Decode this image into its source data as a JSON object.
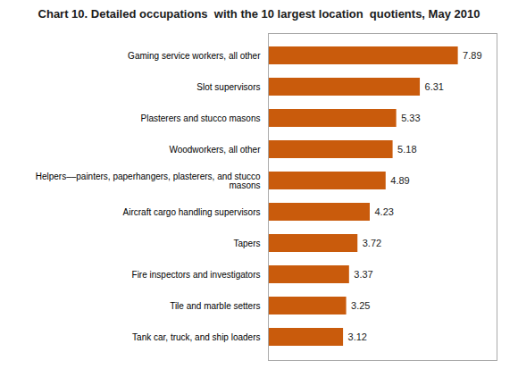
{
  "chart_data": {
    "type": "bar",
    "orientation": "horizontal",
    "title": "Chart 10. Detailed occupations  with the 10 largest location  quotients, May 2010",
    "categories": [
      "Tank car, truck, and ship loaders",
      "Tile and marble setters",
      "Fire inspectors and investigators",
      "Tapers",
      "Aircraft cargo handling supervisors",
      "Helpers––painters, paperhangers, plasterers, and stucco\nmasons",
      "Woodworkers, all other",
      "Plasterers and stucco masons",
      "Slot supervisors",
      "Gaming service workers, all other"
    ],
    "values": [
      3.12,
      3.25,
      3.37,
      3.72,
      4.23,
      4.89,
      5.18,
      5.33,
      6.31,
      7.89
    ],
    "color": "#c95b0c",
    "xlim": [
      0,
      9.5
    ],
    "data_labels": true,
    "tick_labels": "y",
    "grid": false
  }
}
